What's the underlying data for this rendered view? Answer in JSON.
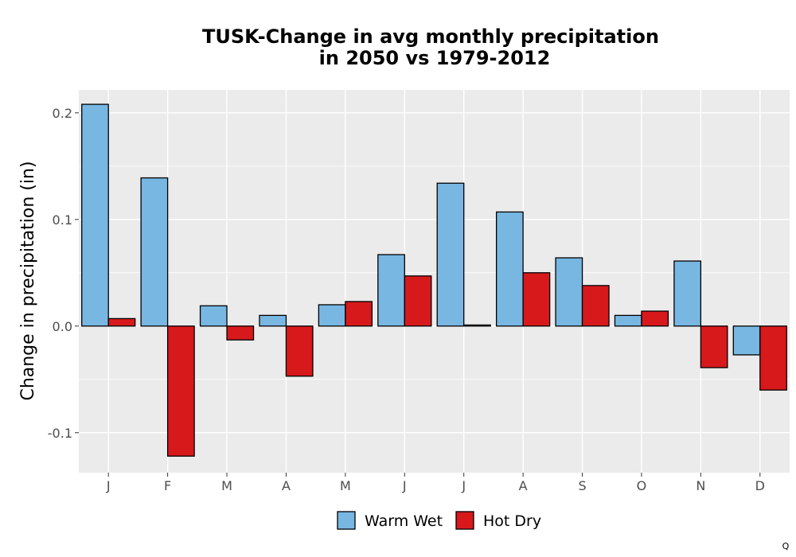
{
  "chart_data": {
    "type": "bar",
    "title_lines": [
      "TUSK-Change in avg monthly precipitation",
      "in 2050 vs 1979-2012"
    ],
    "xlabel": "",
    "ylabel": "Change in precipitation (in)",
    "categories": [
      "J",
      "F",
      "M",
      "A",
      "M",
      "J",
      "J",
      "A",
      "S",
      "O",
      "N",
      "D"
    ],
    "series": [
      {
        "name": "Warm Wet",
        "color": "#78b7e1",
        "values": [
          0.208,
          0.139,
          0.019,
          0.01,
          0.02,
          0.067,
          0.134,
          0.107,
          0.064,
          0.01,
          0.061,
          -0.027
        ]
      },
      {
        "name": "Hot Dry",
        "color": "#d7191c",
        "values": [
          0.007,
          -0.122,
          -0.013,
          -0.047,
          0.023,
          0.047,
          0.001,
          0.05,
          0.038,
          0.014,
          -0.039,
          -0.06
        ]
      }
    ],
    "yticks": [
      -0.1,
      0.0,
      0.1,
      0.2
    ],
    "ytick_labels": [
      "-0.1",
      "0.0",
      "0.1",
      "0.2"
    ],
    "ylim": [
      -0.1375,
      0.2215
    ],
    "grid": true,
    "legend_position": "bottom",
    "panel_background": "#ebebeb",
    "corner_mark": "Q"
  }
}
